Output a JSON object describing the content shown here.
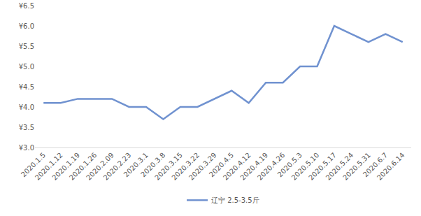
{
  "chart_data": {
    "type": "line",
    "categories": [
      "2020.1.5",
      "2020.1.12",
      "2020.1.19",
      "2020.1.26",
      "2020.2.09",
      "2020.2.23",
      "2020.3.1",
      "2020.3.8",
      "2020.3.15",
      "2020.3.22",
      "2020.3.29",
      "2020.4.5",
      "2020.4.12",
      "2020.4.19",
      "2020.4.26",
      "2020.5.3",
      "2020.5.10",
      "2020.5.17",
      "2020.5.24",
      "2020.5.31",
      "2020.6.7",
      "2020.6.14"
    ],
    "series": [
      {
        "name": "辽宁 2.5-3.5斤",
        "color": "#7092d0",
        "values": [
          4.1,
          4.1,
          4.2,
          4.2,
          4.2,
          4.0,
          4.0,
          3.7,
          4.0,
          4.0,
          4.2,
          4.4,
          4.1,
          4.6,
          4.6,
          5.0,
          5.0,
          6.0,
          5.8,
          5.6,
          5.8,
          5.6
        ]
      }
    ],
    "ylim": [
      3.0,
      6.5
    ],
    "yticks": [
      {
        "value": 3.0,
        "label": "¥3.0"
      },
      {
        "value": 3.5,
        "label": "¥3.5"
      },
      {
        "value": 4.0,
        "label": "¥4.0"
      },
      {
        "value": 4.5,
        "label": "¥4.5"
      },
      {
        "value": 5.0,
        "label": "¥5.0"
      },
      {
        "value": 5.5,
        "label": "¥5.5"
      },
      {
        "value": 6.0,
        "label": "¥6.0"
      },
      {
        "value": 6.5,
        "label": "¥6.5"
      }
    ],
    "grid": false,
    "legend": "bottom",
    "marker": "none"
  }
}
